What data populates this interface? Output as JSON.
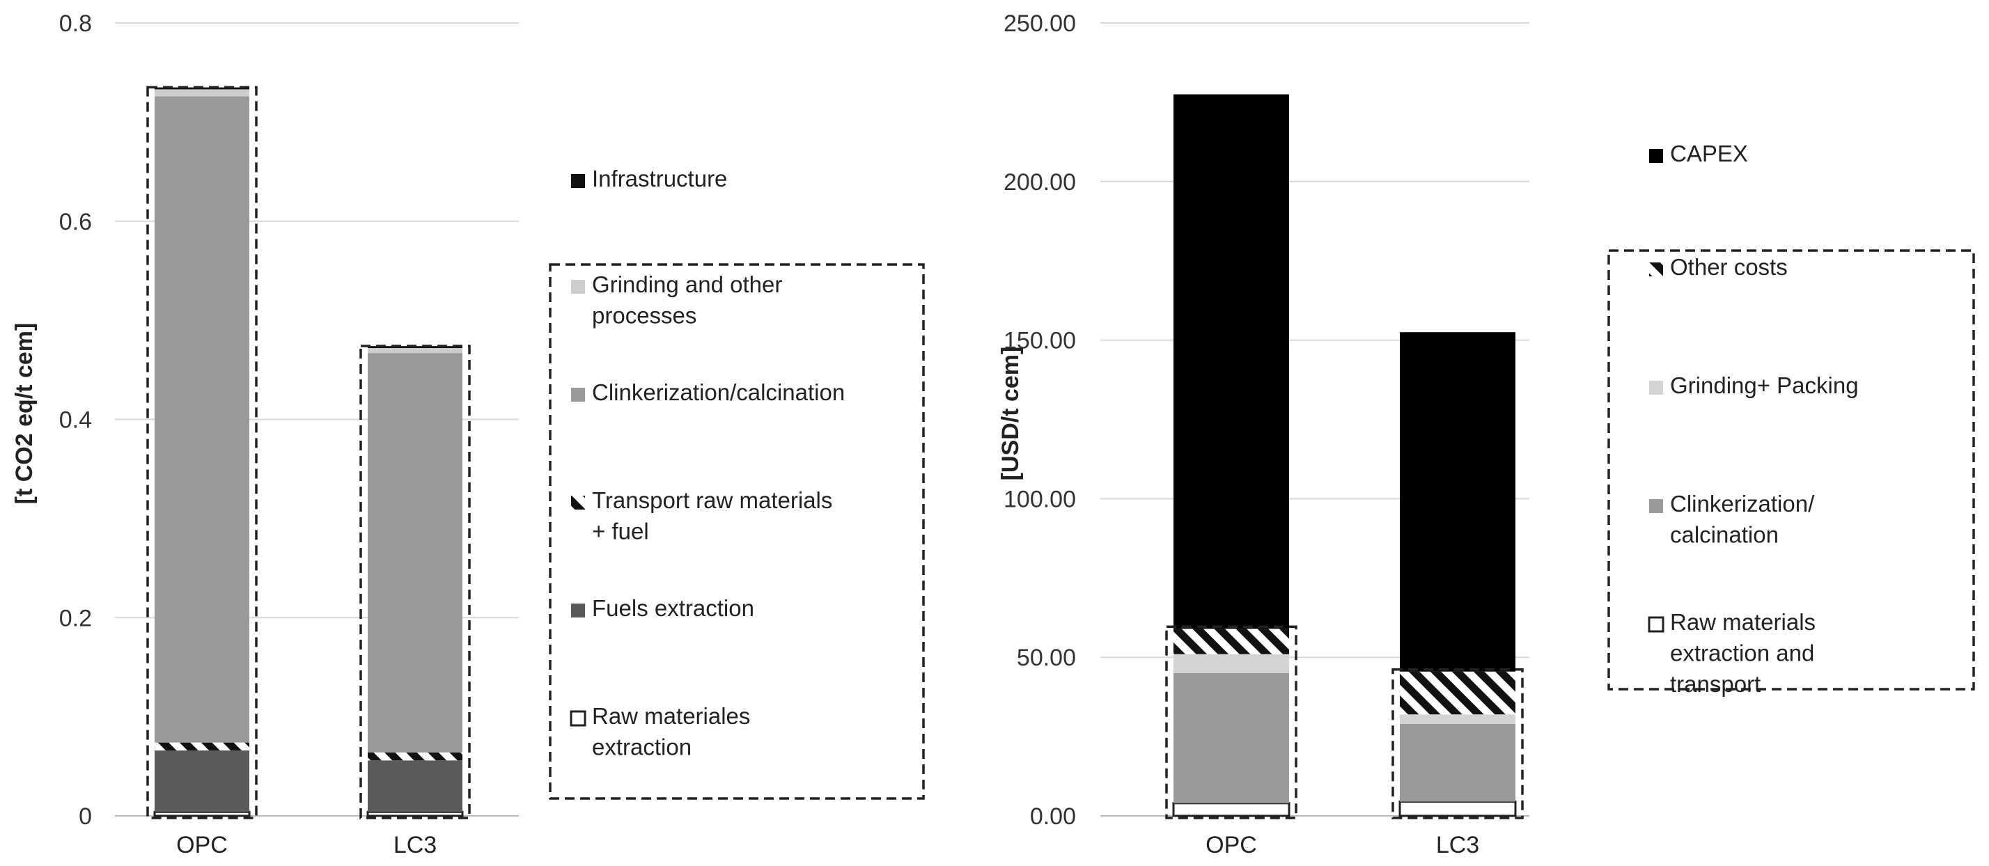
{
  "chart_data": [
    {
      "type": "bar",
      "stacked": true,
      "ylabel": "[t CO2 eq/t cem]",
      "ylim": [
        0,
        0.8
      ],
      "y_ticks": [
        0,
        0.2,
        0.4,
        0.6,
        0.8
      ],
      "y_tick_labels": [
        "0",
        "0.2",
        "0.4",
        "0.6",
        "0.8"
      ],
      "grid": true,
      "categories": [
        "OPC",
        "LC3"
      ],
      "series": [
        {
          "name": "Raw materiales extraction",
          "color": "#ffffff",
          "values": [
            0.004,
            0.004
          ]
        },
        {
          "name": "Fuels extraction",
          "color": "#5a5a5a",
          "values": [
            0.062,
            0.052
          ]
        },
        {
          "name": "Transport raw materials + fuel",
          "color": "#hatch",
          "values": [
            0.008,
            0.008
          ]
        },
        {
          "name": "Clinkerization/calcination",
          "color": "#9a9a9a",
          "values": [
            0.652,
            0.403
          ]
        },
        {
          "name": "Grinding and other processes",
          "color": "#cdcdcd",
          "values": [
            0.007,
            0.005
          ]
        },
        {
          "name": "Infrastructure",
          "color": "#111111",
          "values": [
            0.002,
            0.002
          ]
        }
      ],
      "legend_placement": "right",
      "legend_boxed_group": [
        "Grinding and other processes",
        "Clinkerization/calcination",
        "Transport raw materials + fuel",
        "Fuels extraction",
        "Raw materiales extraction"
      ]
    },
    {
      "type": "bar",
      "stacked": true,
      "ylabel": "[USD/t cem]",
      "ylim": [
        0,
        250
      ],
      "y_ticks": [
        0,
        50,
        100,
        150,
        200,
        250
      ],
      "y_tick_labels": [
        "0.00",
        "50.00",
        "100.00",
        "150.00",
        "200.00",
        "250.00"
      ],
      "grid": true,
      "categories": [
        "OPC",
        "LC3"
      ],
      "series": [
        {
          "name": "Raw materials extraction and transport",
          "color": "#ffffff",
          "values": [
            4,
            4.5
          ]
        },
        {
          "name": "Clinkerization/ calcination",
          "color": "#9a9a9a",
          "values": [
            41,
            24.5
          ]
        },
        {
          "name": "Grinding+ Packing",
          "color": "#d4d4d4",
          "values": [
            6,
            3
          ]
        },
        {
          "name": "Other costs",
          "color": "#hatch",
          "values": [
            8,
            13.5
          ]
        },
        {
          "name": "CAPEX",
          "color": "#000000",
          "values": [
            168.5,
            107
          ]
        }
      ],
      "legend_placement": "right",
      "legend_boxed_group": [
        "Other costs",
        "Grinding+ Packing",
        "Clinkerization/ calcination",
        "Raw materials extraction and transport"
      ]
    }
  ]
}
